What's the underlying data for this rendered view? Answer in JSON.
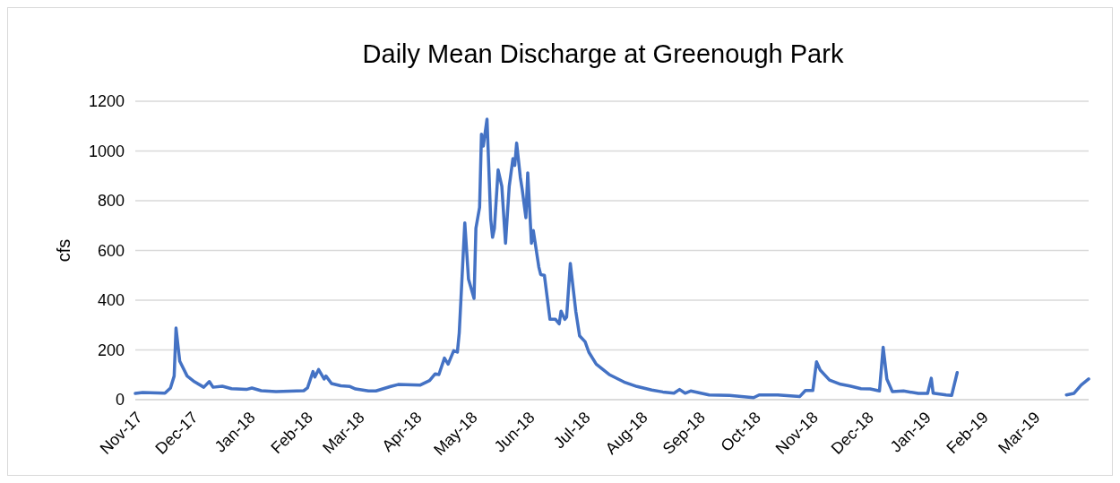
{
  "chart_data": {
    "type": "line",
    "title": "Daily Mean Discharge at Greenough Park",
    "ylabel": "cfs",
    "xlim": [
      "2017-11-01",
      "2019-03-31"
    ],
    "ylim": [
      0,
      1200
    ],
    "yticks": [
      0,
      200,
      400,
      600,
      800,
      1000,
      1200
    ],
    "xticks": [
      {
        "value": "2017-11-01",
        "label": "Nov-17"
      },
      {
        "value": "2017-12-01",
        "label": "Dec-17"
      },
      {
        "value": "2018-01-01",
        "label": "Jan-18"
      },
      {
        "value": "2018-02-01",
        "label": "Feb-18"
      },
      {
        "value": "2018-03-01",
        "label": "Mar-18"
      },
      {
        "value": "2018-04-01",
        "label": "Apr-18"
      },
      {
        "value": "2018-05-01",
        "label": "May-18"
      },
      {
        "value": "2018-06-01",
        "label": "Jun-18"
      },
      {
        "value": "2018-07-01",
        "label": "Jul-18"
      },
      {
        "value": "2018-08-01",
        "label": "Aug-18"
      },
      {
        "value": "2018-09-01",
        "label": "Sep-18"
      },
      {
        "value": "2018-10-01",
        "label": "Oct-18"
      },
      {
        "value": "2018-11-01",
        "label": "Nov-18"
      },
      {
        "value": "2018-12-01",
        "label": "Dec-18"
      },
      {
        "value": "2019-01-01",
        "label": "Jan-19"
      },
      {
        "value": "2019-02-01",
        "label": "Feb-19"
      },
      {
        "value": "2019-03-01",
        "label": "Mar-19"
      }
    ],
    "grid": "y",
    "series": [
      {
        "color": "#4472c4",
        "x": [
          "2017-11-01",
          "2017-11-05",
          "2017-11-17",
          "2017-11-20",
          "2017-11-22",
          "2017-11-23",
          "2017-11-25",
          "2017-11-29",
          "2017-12-03",
          "2017-12-08",
          "2017-12-11",
          "2017-12-13",
          "2017-12-18",
          "2017-12-23",
          "2017-12-31",
          "2018-01-03",
          "2018-01-08",
          "2018-01-16",
          "2018-01-31",
          "2018-02-02",
          "2018-02-05",
          "2018-02-06",
          "2018-02-08",
          "2018-02-11",
          "2018-02-12",
          "2018-02-15",
          "2018-02-20",
          "2018-02-25",
          "2018-02-28",
          "2018-03-07",
          "2018-03-11",
          "2018-03-19",
          "2018-03-23",
          "2018-04-04",
          "2018-04-09",
          "2018-04-12",
          "2018-04-14",
          "2018-04-17",
          "2018-04-19",
          "2018-04-22",
          "2018-04-24",
          "2018-04-25",
          "2018-04-28",
          "2018-04-30",
          "2018-05-03",
          "2018-05-04",
          "2018-05-06",
          "2018-05-07",
          "2018-05-08",
          "2018-05-10",
          "2018-05-12",
          "2018-05-13",
          "2018-05-14",
          "2018-05-16",
          "2018-05-18",
          "2018-05-20",
          "2018-05-22",
          "2018-05-24",
          "2018-05-25",
          "2018-05-26",
          "2018-05-28",
          "2018-05-29",
          "2018-05-31",
          "2018-06-01",
          "2018-06-03",
          "2018-06-04",
          "2018-06-07",
          "2018-06-08",
          "2018-06-10",
          "2018-06-13",
          "2018-06-16",
          "2018-06-18",
          "2018-06-19",
          "2018-06-21",
          "2018-06-22",
          "2018-06-24",
          "2018-06-27",
          "2018-06-29",
          "2018-07-02",
          "2018-07-04",
          "2018-07-08",
          "2018-07-15",
          "2018-07-23",
          "2018-07-30",
          "2018-08-07",
          "2018-08-13",
          "2018-08-19",
          "2018-08-22",
          "2018-08-25",
          "2018-08-28",
          "2018-09-07",
          "2018-09-18",
          "2018-10-01",
          "2018-10-04",
          "2018-10-14",
          "2018-10-26",
          "2018-10-29",
          "2018-11-02",
          "2018-11-04",
          "2018-11-06",
          "2018-11-11",
          "2018-11-17",
          "2018-11-22",
          "2018-11-28",
          "2018-12-03",
          "2018-12-08",
          "2018-12-10",
          "2018-12-12",
          "2018-12-15",
          "2018-12-21",
          "2018-12-29",
          "2019-01-03",
          "2019-01-05",
          "2019-01-06",
          "2019-01-13",
          "2019-01-16",
          "2019-01-19",
          "2019-02-15",
          "2019-03-19",
          "2019-03-23",
          "2019-03-27",
          "2019-03-31"
        ],
        "values": [
          25,
          29,
          26,
          47,
          95,
          288,
          155,
          95,
          72,
          50,
          73,
          50,
          54,
          44,
          41,
          47,
          36,
          32,
          36,
          47,
          113,
          91,
          121,
          83,
          95,
          65,
          56,
          53,
          43,
          35,
          35,
          53,
          61,
          59,
          77,
          104,
          101,
          167,
          143,
          197,
          191,
          269,
          711,
          485,
          407,
          689,
          774,
          1068,
          1020,
          1128,
          725,
          653,
          689,
          924,
          858,
          629,
          858,
          969,
          942,
          1032,
          894,
          846,
          732,
          912,
          629,
          680,
          533,
          503,
          500,
          323,
          323,
          305,
          356,
          323,
          332,
          548,
          353,
          257,
          233,
          191,
          143,
          101,
          71,
          53,
          39,
          31,
          26,
          41,
          26,
          35,
          19,
          17,
          8,
          19,
          19,
          13,
          37,
          37,
          152,
          119,
          79,
          62,
          55,
          44,
          43,
          35,
          211,
          83,
          32,
          35,
          25,
          25,
          86,
          26,
          19,
          17,
          109,
          null,
          19,
          25,
          59,
          83
        ]
      }
    ]
  }
}
